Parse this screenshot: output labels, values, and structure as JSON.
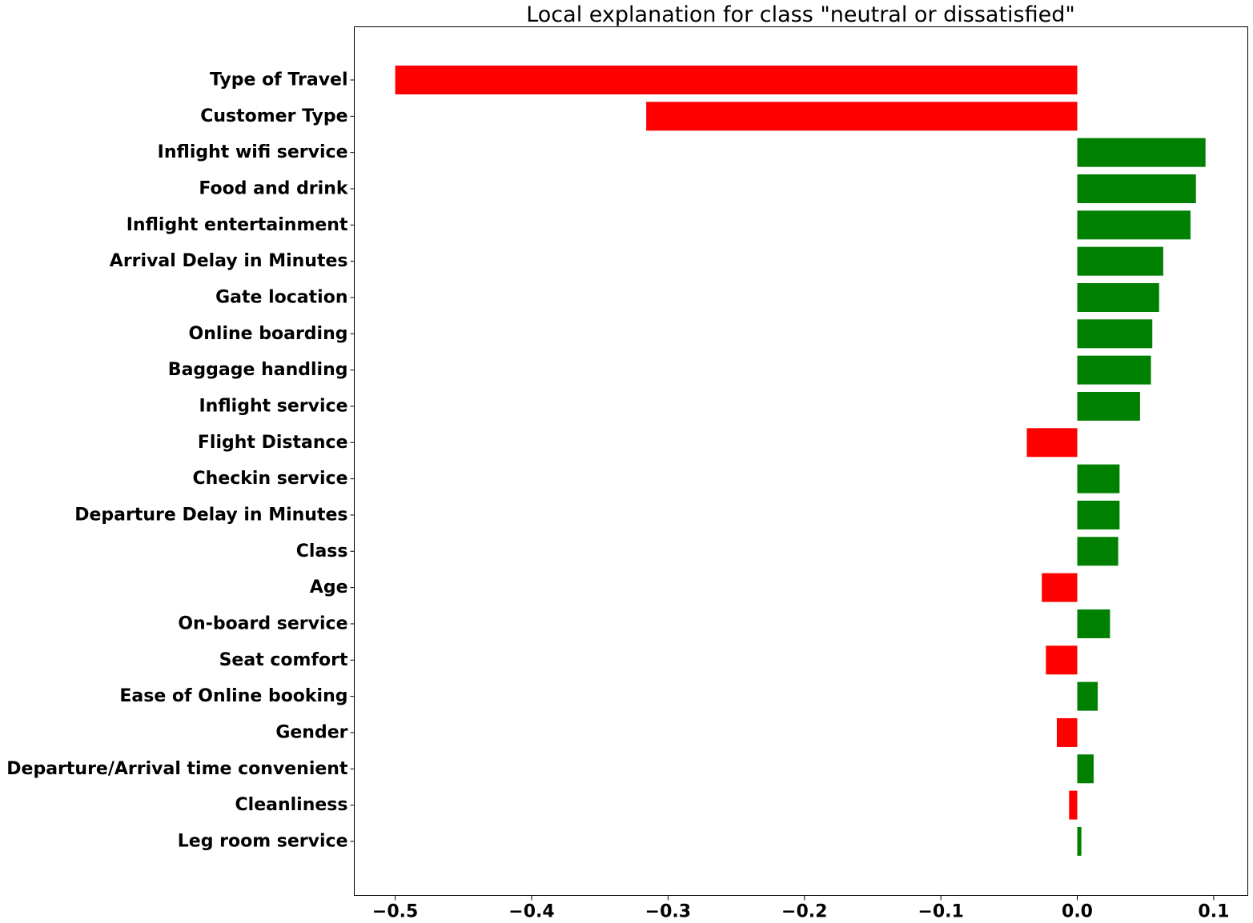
{
  "chart_data": {
    "type": "bar",
    "orientation": "horizontal",
    "title": "Local explanation for class \"neutral or dissatisfied\"",
    "xlabel": "",
    "ylabel": "",
    "xlim": [
      -0.53,
      0.125
    ],
    "xticks": [
      -0.5,
      -0.4,
      -0.3,
      -0.2,
      -0.1,
      0.0,
      0.1
    ],
    "xtick_labels": [
      "−0.5",
      "−0.4",
      "−0.3",
      "−0.2",
      "−0.1",
      "0.0",
      "0.1"
    ],
    "grid": false,
    "legend": false,
    "colors": {
      "positive": "#008000",
      "negative": "#ff0000"
    },
    "categories": [
      "Type of Travel",
      "Customer Type",
      "Inflight wifi service",
      "Food and drink",
      "Inflight entertainment",
      "Arrival Delay in Minutes",
      "Gate location",
      "Online boarding",
      "Baggage handling",
      "Inflight service",
      "Flight Distance",
      "Checkin service",
      "Departure Delay in Minutes",
      "Class",
      "Age",
      "On-board service",
      "Seat comfort",
      "Ease of Online booking",
      "Gender",
      "Departure/Arrival time convenient",
      "Cleanliness",
      "Leg room service"
    ],
    "values": [
      -0.5,
      -0.316,
      0.094,
      0.087,
      0.083,
      0.063,
      0.06,
      0.055,
      0.054,
      0.046,
      -0.037,
      0.031,
      0.031,
      0.03,
      -0.026,
      0.024,
      -0.023,
      0.015,
      -0.015,
      0.012,
      -0.006,
      0.003
    ]
  }
}
